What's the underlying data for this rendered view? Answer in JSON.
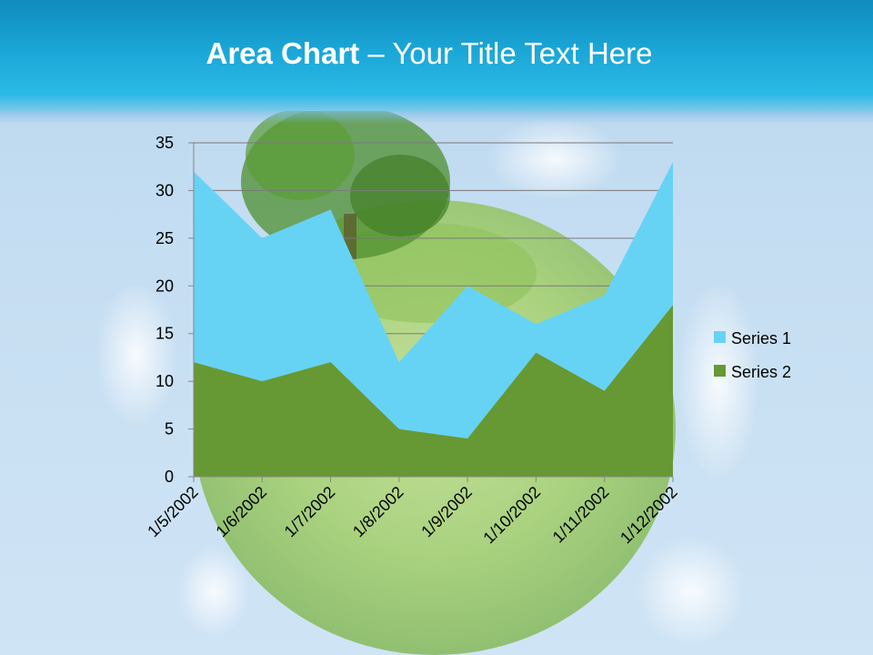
{
  "slide": {
    "title_bold": "Area Chart",
    "title_rest": " – Your Title Text Here"
  },
  "colors": {
    "series1": "#66d3f5",
    "series2": "#669933",
    "gridline": "#7a7a7a",
    "axis": "#868686"
  },
  "chart_data": {
    "type": "area",
    "stacked": true,
    "x": [
      "1/5/2002",
      "1/6/2002",
      "1/7/2002",
      "1/8/2002",
      "1/9/2002",
      "1/10/2002",
      "1/11/2002",
      "1/12/2002"
    ],
    "series": [
      {
        "name": "Series 1",
        "values": [
          20,
          15,
          16,
          7,
          16,
          3,
          10,
          15
        ]
      },
      {
        "name": "Series 2",
        "values": [
          12,
          10,
          12,
          5,
          4,
          13,
          9,
          18
        ]
      }
    ],
    "ylim": [
      0,
      35
    ],
    "yticks": [
      0,
      5,
      10,
      15,
      20,
      25,
      30,
      35
    ],
    "grid": true,
    "legend": "right"
  }
}
